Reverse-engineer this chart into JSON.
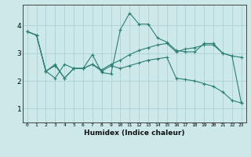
{
  "xlabel": "Humidex (Indice chaleur)",
  "ylabel": "",
  "background_color": "#cce8e8",
  "line_color": "#2d7f75",
  "xlim": [
    -0.5,
    23.5
  ],
  "ylim": [
    0.5,
    4.75
  ],
  "yticks": [
    1,
    2,
    3,
    4
  ],
  "xticks": [
    0,
    1,
    2,
    3,
    4,
    5,
    6,
    7,
    8,
    9,
    10,
    11,
    12,
    13,
    14,
    15,
    16,
    17,
    18,
    19,
    20,
    21,
    22,
    23
  ],
  "line1_x": [
    0,
    1,
    2,
    3,
    4,
    5,
    6,
    7,
    8,
    9,
    10,
    11,
    12,
    13,
    14,
    15,
    16,
    17,
    18,
    19,
    20,
    21,
    22,
    23
  ],
  "line1_y": [
    3.78,
    3.65,
    2.35,
    2.6,
    2.1,
    2.45,
    2.45,
    2.95,
    2.3,
    2.25,
    3.85,
    4.45,
    4.05,
    4.05,
    3.55,
    3.4,
    3.1,
    3.05,
    3.05,
    3.35,
    3.35,
    3.0,
    2.9,
    2.85
  ],
  "line2_x": [
    0,
    1,
    2,
    3,
    4,
    5,
    6,
    7,
    8,
    9,
    10,
    11,
    12,
    13,
    14,
    15,
    16,
    17,
    18,
    19,
    20,
    21,
    22,
    23
  ],
  "line2_y": [
    3.78,
    3.65,
    2.35,
    2.55,
    2.1,
    2.45,
    2.45,
    2.6,
    2.4,
    2.6,
    2.75,
    2.95,
    3.1,
    3.2,
    3.3,
    3.35,
    3.05,
    3.15,
    3.2,
    3.3,
    3.3,
    3.0,
    2.9,
    1.2
  ],
  "line3_x": [
    0,
    1,
    2,
    3,
    4,
    5,
    6,
    7,
    8,
    9,
    10,
    11,
    12,
    13,
    14,
    15,
    16,
    17,
    18,
    19,
    20,
    21,
    22,
    23
  ],
  "line3_y": [
    3.78,
    3.65,
    2.35,
    2.1,
    2.6,
    2.45,
    2.45,
    2.6,
    2.35,
    2.55,
    2.45,
    2.55,
    2.65,
    2.75,
    2.8,
    2.85,
    2.1,
    2.05,
    2.0,
    1.9,
    1.8,
    1.6,
    1.3,
    1.2
  ],
  "figsize": [
    3.2,
    2.0
  ],
  "dpi": 100
}
